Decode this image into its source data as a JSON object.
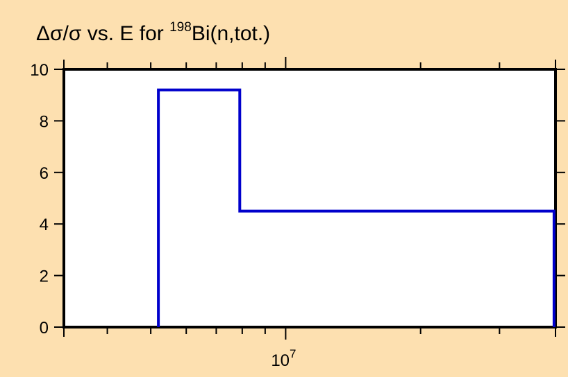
{
  "chart_data": {
    "type": "line",
    "step": "post",
    "title": {
      "prefix": "Δσ/σ vs. E for ",
      "superscript": "198",
      "suffix": "Bi(n,tot.)"
    },
    "xlabel": "",
    "ylabel": "",
    "x_scale": "log",
    "xlim": [
      3200000,
      40000000
    ],
    "ylim": [
      0,
      10
    ],
    "grid": false,
    "x_major_tick_labels": [
      {
        "value": 10000000,
        "base": "10",
        "exponent": "7"
      }
    ],
    "x_minor_ticks": [
      4000000,
      5000000,
      6000000,
      7000000,
      8000000,
      9000000,
      20000000,
      30000000,
      40000000
    ],
    "y_ticks": [
      0,
      2,
      4,
      6,
      8,
      10
    ],
    "y_tick_labels": [
      "0",
      "2",
      "4",
      "6",
      "8",
      "10"
    ],
    "series": [
      {
        "color": "#0000cc",
        "points": [
          {
            "x": 5200000,
            "y": 0
          },
          {
            "x": 5200000,
            "y": 9.2
          },
          {
            "x": 7900000,
            "y": 9.2
          },
          {
            "x": 7900000,
            "y": 4.5
          },
          {
            "x": 39700000,
            "y": 4.5
          },
          {
            "x": 39700000,
            "y": 0
          }
        ]
      }
    ]
  }
}
